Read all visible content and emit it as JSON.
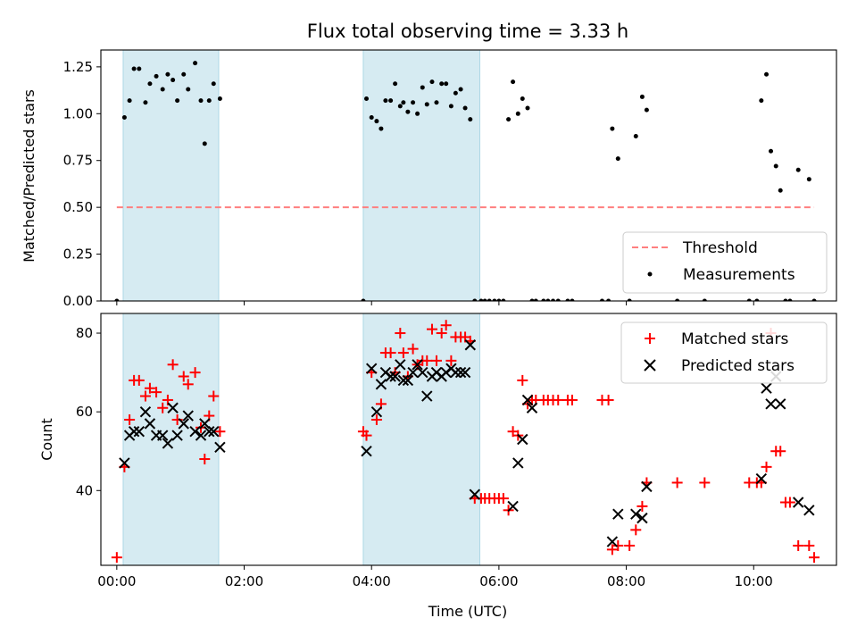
{
  "chart_data": [
    {
      "type": "scatter",
      "title": "Flux total observing time = 3.33 h",
      "xlabel": "",
      "ylabel": "Matched/Predicted stars",
      "xlim": [
        -0.25,
        11.3
      ],
      "ylim": [
        0.0,
        1.34
      ],
      "yticks": [
        "0.00",
        "0.25",
        "0.50",
        "0.75",
        "1.00",
        "1.25"
      ],
      "ytick_values": [
        0,
        0.25,
        0.5,
        0.75,
        1.0,
        1.25
      ],
      "xticks_hours": [
        0,
        2,
        4,
        6,
        8,
        10
      ],
      "shaded_intervals_hours": [
        [
          0.1,
          1.6
        ],
        [
          3.87,
          5.7
        ]
      ],
      "legend_position": "lower right",
      "threshold": {
        "name": "Threshold",
        "value": 0.5,
        "x_range": [
          0.0,
          10.95
        ],
        "color": "#ff7f7f"
      },
      "series": [
        {
          "name": "Measurements",
          "color": "#000000",
          "x": [
            0.0,
            0.12,
            0.2,
            0.27,
            0.35,
            0.45,
            0.52,
            0.62,
            0.72,
            0.8,
            0.88,
            0.95,
            1.05,
            1.12,
            1.23,
            1.32,
            1.38,
            1.45,
            1.52,
            1.62,
            3.87,
            3.92,
            4.0,
            4.08,
            4.15,
            4.22,
            4.3,
            4.37,
            4.45,
            4.5,
            4.57,
            4.65,
            4.72,
            4.8,
            4.87,
            4.95,
            5.02,
            5.1,
            5.17,
            5.25,
            5.32,
            5.4,
            5.47,
            5.55,
            5.62,
            5.72,
            5.78,
            5.85,
            5.93,
            6.0,
            6.07,
            6.15,
            6.22,
            6.3,
            6.37,
            6.45,
            6.52,
            6.58,
            6.7,
            6.77,
            6.85,
            6.93,
            7.08,
            7.15,
            7.62,
            7.72,
            7.78,
            7.87,
            8.05,
            8.15,
            8.25,
            8.32,
            8.8,
            9.23,
            9.93,
            10.05,
            10.12,
            10.2,
            10.27,
            10.35,
            10.42,
            10.5,
            10.57,
            10.7,
            10.87,
            10.95
          ],
          "y": [
            0.0,
            0.98,
            1.07,
            1.24,
            1.24,
            1.06,
            1.16,
            1.2,
            1.13,
            1.21,
            1.18,
            1.07,
            1.21,
            1.13,
            1.27,
            1.07,
            0.84,
            1.07,
            1.16,
            1.08,
            0.0,
            1.08,
            0.98,
            0.96,
            0.92,
            1.07,
            1.07,
            1.16,
            1.04,
            1.06,
            1.01,
            1.06,
            1.0,
            1.14,
            1.05,
            1.17,
            1.06,
            1.16,
            1.16,
            1.04,
            1.11,
            1.13,
            1.03,
            0.97,
            0.0,
            0.0,
            0.0,
            0.0,
            0.0,
            0.0,
            0.0,
            0.97,
            1.17,
            1.0,
            1.08,
            1.03,
            0.0,
            0.0,
            0.0,
            0.0,
            0.0,
            0.0,
            0.0,
            0.0,
            0.0,
            0.0,
            0.92,
            0.76,
            0.0,
            0.88,
            1.09,
            1.02,
            0.0,
            0.0,
            0.0,
            0.0,
            1.07,
            1.21,
            0.8,
            0.72,
            0.59,
            0.0,
            0.0,
            0.7,
            0.65,
            0.0
          ]
        }
      ]
    },
    {
      "type": "scatter",
      "title": "",
      "xlabel": "Time (UTC)",
      "ylabel": "Count",
      "xlim": [
        -0.25,
        11.3
      ],
      "ylim": [
        21,
        85
      ],
      "yticks": [
        "40",
        "60",
        "80"
      ],
      "ytick_values": [
        40,
        60,
        80
      ],
      "xticks": [
        "00:00",
        "02:00",
        "04:00",
        "06:00",
        "08:00",
        "10:00"
      ],
      "xticks_hours": [
        0,
        2,
        4,
        6,
        8,
        10
      ],
      "shaded_intervals_hours": [
        [
          0.1,
          1.6
        ],
        [
          3.87,
          5.7
        ]
      ],
      "legend_position": "upper right",
      "series": [
        {
          "name": "Matched stars",
          "marker": "+",
          "color": "#ff0000",
          "x": [
            0.0,
            0.12,
            0.2,
            0.27,
            0.35,
            0.45,
            0.52,
            0.62,
            0.72,
            0.8,
            0.88,
            0.95,
            1.05,
            1.12,
            1.23,
            1.32,
            1.38,
            1.45,
            1.52,
            1.62,
            3.87,
            3.92,
            4.0,
            4.08,
            4.15,
            4.22,
            4.3,
            4.37,
            4.45,
            4.5,
            4.57,
            4.65,
            4.72,
            4.8,
            4.87,
            4.95,
            5.02,
            5.1,
            5.17,
            5.25,
            5.32,
            5.4,
            5.47,
            5.55,
            5.62,
            5.72,
            5.78,
            5.85,
            5.93,
            6.0,
            6.07,
            6.15,
            6.22,
            6.3,
            6.37,
            6.45,
            6.52,
            6.58,
            6.7,
            6.77,
            6.85,
            6.93,
            7.08,
            7.15,
            7.62,
            7.72,
            7.78,
            7.87,
            8.05,
            8.15,
            8.25,
            8.32,
            8.8,
            9.23,
            9.93,
            10.05,
            10.12,
            10.2,
            10.27,
            10.35,
            10.42,
            10.5,
            10.57,
            10.7,
            10.87,
            10.95
          ],
          "y": [
            23,
            46,
            58,
            68,
            68,
            64,
            66,
            65,
            61,
            63,
            72,
            58,
            69,
            67,
            70,
            56,
            48,
            59,
            64,
            55,
            55,
            54,
            70,
            58,
            62,
            75,
            75,
            70,
            80,
            75,
            69,
            76,
            72,
            73,
            73,
            81,
            73,
            80,
            82,
            73,
            79,
            79,
            79,
            78,
            38,
            38,
            38,
            38,
            38,
            38,
            38,
            35,
            55,
            54,
            68,
            62,
            63,
            63,
            63,
            63,
            63,
            63,
            63,
            63,
            63,
            63,
            25,
            26,
            26,
            30,
            36,
            42,
            42,
            42,
            42,
            42,
            42,
            46,
            80,
            50,
            50,
            37,
            37,
            26,
            26,
            23
          ]
        },
        {
          "name": "Predicted stars",
          "marker": "x",
          "color": "#000000",
          "x": [
            0.12,
            0.2,
            0.27,
            0.35,
            0.45,
            0.52,
            0.62,
            0.72,
            0.8,
            0.88,
            0.95,
            1.05,
            1.12,
            1.23,
            1.32,
            1.38,
            1.45,
            1.52,
            1.62,
            3.92,
            4.0,
            4.08,
            4.15,
            4.22,
            4.3,
            4.37,
            4.45,
            4.5,
            4.57,
            4.65,
            4.72,
            4.8,
            4.87,
            4.95,
            5.02,
            5.1,
            5.17,
            5.25,
            5.32,
            5.4,
            5.47,
            5.55,
            5.62,
            6.22,
            6.3,
            6.37,
            6.45,
            6.52,
            7.78,
            7.87,
            8.15,
            8.25,
            8.32,
            10.12,
            10.2,
            10.27,
            10.35,
            10.42,
            10.7,
            10.87
          ],
          "y": [
            47,
            54,
            55,
            55,
            60,
            57,
            54,
            54,
            52,
            61,
            54,
            57,
            59,
            55,
            54,
            57,
            55,
            55,
            51,
            50,
            71,
            60,
            67,
            70,
            69,
            69,
            72,
            68,
            68,
            70,
            72,
            70,
            64,
            69,
            70,
            69,
            70,
            71,
            70,
            70,
            70,
            77,
            39,
            36,
            47,
            53,
            63,
            61,
            27,
            34,
            34,
            33,
            41,
            43,
            66,
            62,
            69,
            62,
            37,
            35
          ]
        }
      ]
    }
  ]
}
